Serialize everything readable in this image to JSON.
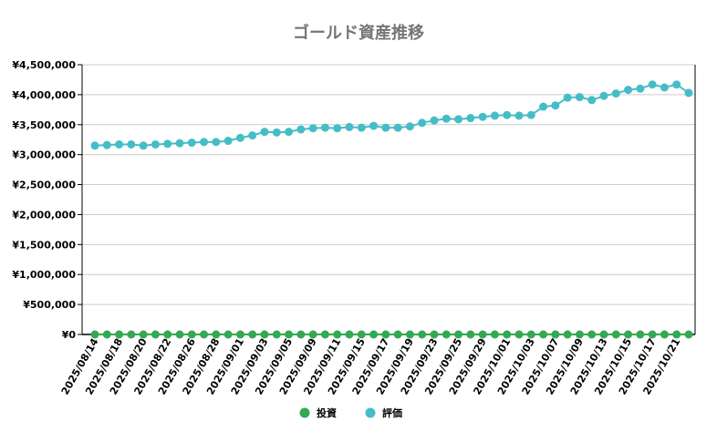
{
  "chart_data": {
    "type": "line",
    "title": "ゴールド資産推移",
    "xlabel": "",
    "ylabel": "",
    "ylim": [
      0,
      4500000
    ],
    "y_ticks": [
      "¥0",
      "¥500,000",
      "¥1,000,000",
      "¥1,500,000",
      "¥2,000,000",
      "¥2,500,000",
      "¥3,000,000",
      "¥3,500,000",
      "¥4,000,000",
      "¥4,500,000"
    ],
    "y_tick_values": [
      0,
      500000,
      1000000,
      1500000,
      2000000,
      2500000,
      3000000,
      3500000,
      4000000,
      4500000
    ],
    "grid": true,
    "legend_position": "bottom",
    "x": [
      "2025/08/14",
      "2025/08/15",
      "2025/08/18",
      "2025/08/19",
      "2025/08/20",
      "2025/08/21",
      "2025/08/22",
      "2025/08/25",
      "2025/08/26",
      "2025/08/27",
      "2025/08/28",
      "2025/08/29",
      "2025/09/01",
      "2025/09/02",
      "2025/09/03",
      "2025/09/04",
      "2025/09/05",
      "2025/09/08",
      "2025/09/09",
      "2025/09/10",
      "2025/09/11",
      "2025/09/12",
      "2025/09/15",
      "2025/09/16",
      "2025/09/17",
      "2025/09/18",
      "2025/09/19",
      "2025/09/22",
      "2025/09/23",
      "2025/09/24",
      "2025/09/25",
      "2025/09/26",
      "2025/09/29",
      "2025/09/30",
      "2025/10/01",
      "2025/10/02",
      "2025/10/03",
      "2025/10/06",
      "2025/10/07",
      "2025/10/08",
      "2025/10/09",
      "2025/10/10",
      "2025/10/13",
      "2025/10/14",
      "2025/10/15",
      "2025/10/16",
      "2025/10/17",
      "2025/10/20",
      "2025/10/21",
      "2025/10/22"
    ],
    "x_tick_labels": [
      "2025/08/14",
      "2025/08/18",
      "2025/08/20",
      "2025/08/22",
      "2025/08/26",
      "2025/08/28",
      "2025/09/01",
      "2025/09/03",
      "2025/09/05",
      "2025/09/09",
      "2025/09/11",
      "2025/09/15",
      "2025/09/17",
      "2025/09/19",
      "2025/09/23",
      "2025/09/25",
      "2025/09/29",
      "2025/10/01",
      "2025/10/03",
      "2025/10/07",
      "2025/10/09",
      "2025/10/13",
      "2025/10/15",
      "2025/10/17",
      "2025/10/21"
    ],
    "series": [
      {
        "name": "投資",
        "color": "#34a853",
        "values": [
          0,
          0,
          0,
          0,
          0,
          0,
          0,
          0,
          0,
          0,
          0,
          0,
          0,
          0,
          0,
          0,
          0,
          0,
          0,
          0,
          0,
          0,
          0,
          0,
          0,
          0,
          0,
          0,
          0,
          0,
          0,
          0,
          0,
          0,
          0,
          0,
          0,
          0,
          0,
          0,
          0,
          0,
          0,
          0,
          0,
          0,
          0,
          0,
          0,
          0
        ]
      },
      {
        "name": "評価",
        "color": "#46bdc6",
        "values": [
          3150000,
          3160000,
          3170000,
          3170000,
          3150000,
          3170000,
          3180000,
          3190000,
          3200000,
          3210000,
          3210000,
          3230000,
          3280000,
          3320000,
          3380000,
          3370000,
          3380000,
          3420000,
          3440000,
          3450000,
          3440000,
          3460000,
          3450000,
          3480000,
          3450000,
          3450000,
          3470000,
          3530000,
          3570000,
          3600000,
          3590000,
          3610000,
          3630000,
          3650000,
          3660000,
          3650000,
          3660000,
          3800000,
          3820000,
          3950000,
          3960000,
          3910000,
          3980000,
          4020000,
          4080000,
          4100000,
          4170000,
          4120000,
          4170000,
          4030000
        ]
      }
    ]
  }
}
